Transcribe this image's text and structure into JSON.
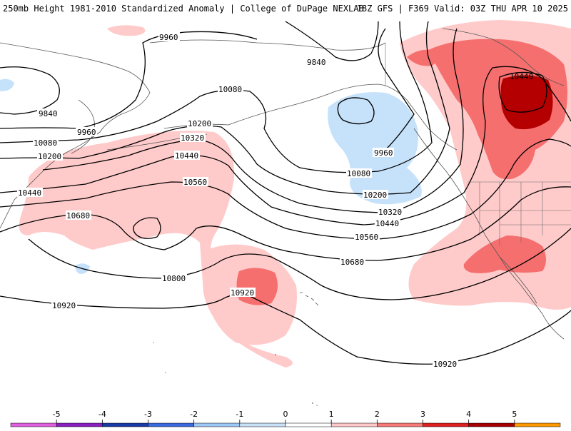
{
  "header": {
    "title_left": "250mb Height 1981-2010 Standardized Anomaly | College of DuPage NEXLAB",
    "title_right": "18Z GFS | F369 Valid: 03Z THU APR 10 2025"
  },
  "colors": {
    "neg5": "#e060e0",
    "neg4": "#8a20c0",
    "neg3": "#1a3aa8",
    "neg2": "#3a6adf",
    "neg1": "#9ec8f5",
    "neg0": "#c8e0f8",
    "pos0": "#ffffff",
    "pos1": "#ffc8c8",
    "pos2": "#f87a7a",
    "pos3": "#e02020",
    "pos4": "#a80000",
    "pos5": "#ff9900",
    "anom_pos1": "#ffcaca",
    "anom_pos2": "#f56f6f",
    "anom_pos3": "#b40000",
    "anom_neg1": "#c6e2fb",
    "coast": "#555555",
    "contour": "#000000"
  },
  "contours": {
    "labels": [
      {
        "text": "9960"
      },
      {
        "text": "9840"
      },
      {
        "text": "9840"
      },
      {
        "text": "9960"
      },
      {
        "text": "10080"
      },
      {
        "text": "10080"
      },
      {
        "text": "10200"
      },
      {
        "text": "10200"
      },
      {
        "text": "10320"
      },
      {
        "text": "10440"
      },
      {
        "text": "10440"
      },
      {
        "text": "10560"
      },
      {
        "text": "10680"
      },
      {
        "text": "10800"
      },
      {
        "text": "10920"
      },
      {
        "text": "10920"
      },
      {
        "text": "9960"
      },
      {
        "text": "10080"
      },
      {
        "text": "10200"
      },
      {
        "text": "10320"
      },
      {
        "text": "10440"
      },
      {
        "text": "10560"
      },
      {
        "text": "10680"
      },
      {
        "text": "10920"
      },
      {
        "text": "10440"
      }
    ]
  },
  "colorbar": {
    "ticks": [
      "-5",
      "-4",
      "-3",
      "-2",
      "-1",
      "0",
      "1",
      "2",
      "3",
      "4",
      "5"
    ]
  }
}
